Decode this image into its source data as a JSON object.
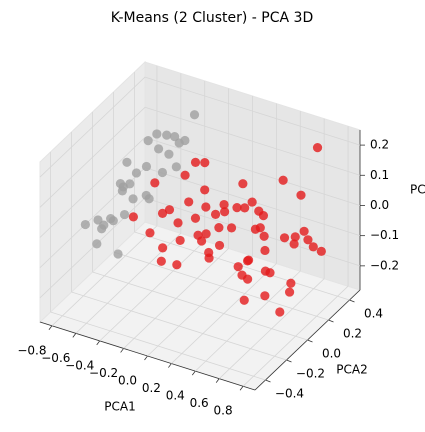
{
  "chart_data": {
    "type": "scatter3d",
    "title": "K-Means (2 Cluster) - PCA 3D",
    "xlabel": "PCA1",
    "ylabel": "PCA2",
    "zlabel": "PC",
    "xlim": [
      -0.9,
      0.9
    ],
    "ylim": [
      -0.5,
      0.5
    ],
    "zlim": [
      -0.28,
      0.25
    ],
    "xticks": [
      {
        "value": -0.8,
        "label": "−0.8"
      },
      {
        "value": -0.6,
        "label": "−0.6"
      },
      {
        "value": -0.4,
        "label": "−0.4"
      },
      {
        "value": -0.2,
        "label": "−0.2"
      },
      {
        "value": 0,
        "label": "0.0"
      },
      0.2,
      0.4,
      0.6,
      0.8
    ],
    "yticks": [
      {
        "value": -0.4,
        "label": "−0.4"
      },
      {
        "value": -0.2,
        "label": "−0.2"
      },
      {
        "value": 0,
        "label": "0.0"
      },
      0.2,
      0.4
    ],
    "zticks": [
      {
        "value": -0.2,
        "label": "−0.2"
      },
      {
        "value": -0.1,
        "label": "−0.1"
      },
      {
        "value": 0,
        "label": "0.0"
      },
      0.1,
      0.2
    ],
    "grid": true,
    "series": [
      {
        "color": "#a0a0a0",
        "x": [
          -0.62,
          -0.55,
          -0.71,
          -0.48,
          -0.66,
          -0.39,
          -0.58,
          -0.74,
          -0.45,
          -0.52,
          -0.81,
          -0.6,
          -0.35,
          -0.68,
          -0.5,
          -0.42,
          -0.77,
          -0.56,
          -0.63,
          -0.47,
          -0.7,
          -0.38,
          -0.54,
          -0.65,
          -0.44,
          -0.59,
          -0.73,
          -0.49,
          -0.33,
          -0.57
        ],
        "y": [
          0.1,
          -0.2,
          0.05,
          0.25,
          -0.1,
          0.3,
          0.15,
          -0.25,
          0.0,
          0.35,
          -0.05,
          -0.3,
          0.2,
          0.28,
          -0.15,
          0.12,
          0.18,
          0.32,
          -0.22,
          0.05,
          -0.12,
          0.38,
          0.22,
          0.0,
          -0.28,
          0.26,
          0.1,
          -0.08,
          0.15,
          -0.02
        ],
        "z": [
          0.05,
          0.0,
          0.02,
          0.08,
          -0.04,
          0.12,
          0.06,
          -0.02,
          0.03,
          0.1,
          -0.08,
          -0.05,
          0.15,
          0.09,
          0.01,
          0.07,
          0.04,
          0.11,
          -0.03,
          0.0,
          -0.06,
          0.18,
          0.1,
          0.02,
          -0.07,
          0.13,
          -0.01,
          0.04,
          0.09,
          0.06
        ]
      },
      {
        "color": "#e41a1c",
        "x": [
          -0.25,
          -0.1,
          0.05,
          0.2,
          0.35,
          0.5,
          0.65,
          0.8,
          -0.2,
          -0.05,
          0.1,
          0.25,
          0.4,
          0.55,
          0.7,
          -0.28,
          -0.15,
          0.0,
          0.15,
          0.3,
          0.45,
          0.6,
          0.75,
          -0.22,
          -0.08,
          0.08,
          0.22,
          0.38,
          0.52,
          0.68,
          -0.18,
          -0.02,
          0.12,
          0.28,
          0.42,
          0.58,
          0.72,
          -0.12,
          0.02,
          0.18,
          0.32,
          0.48,
          0.62,
          0.78,
          -0.26,
          0.06,
          0.26,
          0.46,
          0.66,
          0.84,
          -0.16,
          0.14,
          0.34,
          0.54,
          0.74,
          -0.06,
          0.24,
          0.44,
          0.64,
          0.04
        ],
        "y": [
          -0.35,
          0.2,
          -0.1,
          0.3,
          -0.25,
          0.05,
          0.38,
          -0.15,
          0.12,
          -0.3,
          0.25,
          -0.05,
          0.35,
          -0.2,
          0.1,
          0.3,
          -0.12,
          0.18,
          -0.38,
          0.08,
          0.28,
          -0.22,
          0.0,
          -0.18,
          0.32,
          -0.28,
          0.15,
          -0.08,
          0.4,
          -0.32,
          0.22,
          -0.02,
          0.36,
          -0.26,
          0.14,
          -0.1,
          0.26,
          -0.34,
          0.06,
          -0.16,
          0.24,
          -0.36,
          0.16,
          0.02,
          -0.06,
          0.34,
          -0.24,
          0.1,
          -0.14,
          0.2,
          0.04,
          -0.38,
          0.28,
          -0.04,
          0.12,
          -0.3,
          0.18,
          -0.2,
          0.3,
          0.0
        ],
        "z": [
          0.1,
          -0.2,
          0.05,
          -0.1,
          0.15,
          -0.05,
          0.2,
          -0.15,
          0.0,
          0.12,
          -0.22,
          0.08,
          -0.12,
          0.18,
          -0.02,
          -0.18,
          0.06,
          -0.08,
          0.14,
          -0.25,
          0.1,
          0.02,
          -0.14,
          0.16,
          -0.06,
          0.04,
          -0.2,
          0.12,
          -0.1,
          0.0,
          -0.16,
          0.2,
          -0.04,
          0.08,
          -0.24,
          0.14,
          -0.08,
          0.06,
          -0.12,
          0.18,
          -0.02,
          0.1,
          -0.18,
          0.04,
          -0.1,
          0.02,
          0.16,
          -0.14,
          0.08,
          -0.06,
          0.12,
          0.0,
          -0.22,
          0.06,
          0.14,
          -0.04,
          -0.16,
          0.1,
          -0.08,
          0.2
        ]
      }
    ]
  }
}
